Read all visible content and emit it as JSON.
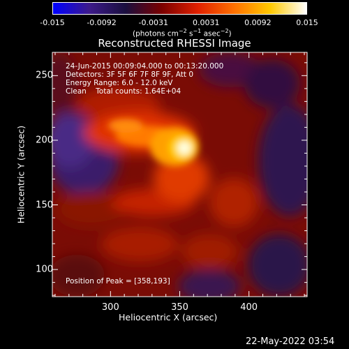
{
  "colorbar": {
    "tick_labels": [
      "-0.015",
      "-0.0092",
      "-0.0031",
      "0.0031",
      "0.0092",
      "0.015"
    ],
    "tick_values": [
      -0.015,
      -0.0092,
      -0.0031,
      0.0031,
      0.0092,
      0.015
    ],
    "range": [
      -0.015,
      0.015
    ],
    "units": {
      "prefix": "(photons cm",
      "exp1": "−2",
      "mid1": " s",
      "exp2": "−1",
      "mid2": " asec",
      "exp3": "−2",
      "suffix": ")"
    }
  },
  "title": "Reconstructed RHESSI Image",
  "annotations": {
    "time": "24-Jun-2015 00:09:04.000 to 00:13:20.000",
    "detectors": "Detectors: 3F 5F 6F 7F 8F 9F, Att 0",
    "energy": "Energy Range: 6.0 - 12.0 keV",
    "clean": "Clean    Total counts: 1.64E+04",
    "peak": "Position of Peak = [358,193]"
  },
  "axes": {
    "xlabel": "Heliocentric X (arcsec)",
    "ylabel": "Heliocentric Y (arcsec)",
    "x_ticks": [
      "300",
      "350",
      "400"
    ],
    "x_tick_values": [
      300,
      350,
      400
    ],
    "y_ticks": [
      "100",
      "150",
      "200",
      "250"
    ],
    "y_tick_values": [
      100,
      150,
      200,
      250
    ],
    "xlim": [
      258,
      442
    ],
    "ylim": [
      79,
      268
    ]
  },
  "datestamp": "22-May-2022 03:54",
  "colors": {
    "colormap": [
      "#0000ff",
      "#3d1a8a",
      "#1a0f3f",
      "#7a0000",
      "#e02000",
      "#ff7000",
      "#ffc800",
      "#ffffff"
    ]
  }
}
